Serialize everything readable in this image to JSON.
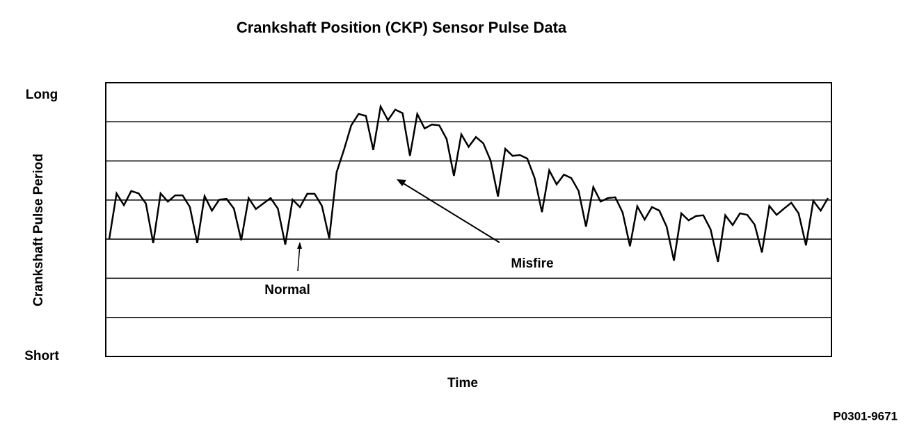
{
  "chart_data": {
    "type": "line",
    "title": "Crankshaft Position (CKP) Sensor Pulse Data",
    "x_label": "Time",
    "y_label": "Crankshaft Pulse Period",
    "ylim": [
      0,
      7
    ],
    "yticks": [
      {
        "value": 0,
        "label": "Short"
      },
      {
        "value": 1,
        "label": null
      },
      {
        "value": 2,
        "label": null
      },
      {
        "value": 3,
        "label": null
      },
      {
        "value": 4,
        "label": null
      },
      {
        "value": 5,
        "label": null
      },
      {
        "value": 6,
        "label": null
      },
      {
        "value": 7,
        "label": "Long"
      }
    ],
    "grid": true,
    "color": "#000000",
    "values": [
      3.0,
      4.17,
      3.87,
      4.23,
      4.17,
      3.91,
      2.9,
      4.17,
      3.96,
      4.12,
      4.12,
      3.82,
      2.9,
      4.1,
      3.73,
      4.01,
      4.03,
      3.78,
      2.97,
      4.05,
      3.77,
      3.91,
      4.05,
      3.78,
      2.86,
      4.01,
      3.82,
      4.16,
      4.16,
      3.85,
      3.02,
      4.71,
      5.28,
      5.91,
      6.2,
      6.15,
      5.28,
      6.39,
      6.04,
      6.31,
      6.22,
      5.13,
      6.2,
      5.83,
      5.93,
      5.91,
      5.56,
      4.62,
      5.68,
      5.36,
      5.61,
      5.45,
      5.01,
      4.09,
      5.31,
      5.13,
      5.15,
      5.06,
      4.56,
      3.69,
      4.76,
      4.4,
      4.65,
      4.56,
      4.23,
      3.32,
      4.33,
      3.96,
      4.05,
      4.07,
      3.68,
      2.82,
      3.84,
      3.5,
      3.82,
      3.73,
      3.32,
      2.45,
      3.66,
      3.48,
      3.59,
      3.61,
      3.25,
      2.42,
      3.61,
      3.36,
      3.66,
      3.62,
      3.37,
      2.66,
      3.85,
      3.62,
      3.78,
      3.93,
      3.66,
      2.84,
      3.98,
      3.73,
      4.05
    ],
    "annotations": [
      "Normal",
      "Misfire"
    ],
    "figure_id": "P0301-9671"
  }
}
